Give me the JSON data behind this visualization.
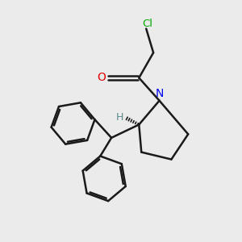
{
  "bg_color": "#ebebeb",
  "bond_color": "#1a1a1a",
  "N_color": "#0000ee",
  "O_color": "#dd0000",
  "Cl_color": "#00aa00",
  "H_color": "#5a8a8a",
  "bond_width": 1.8,
  "figsize": [
    3.0,
    3.0
  ],
  "dpi": 100,
  "xlim": [
    0,
    10
  ],
  "ylim": [
    0,
    10
  ]
}
